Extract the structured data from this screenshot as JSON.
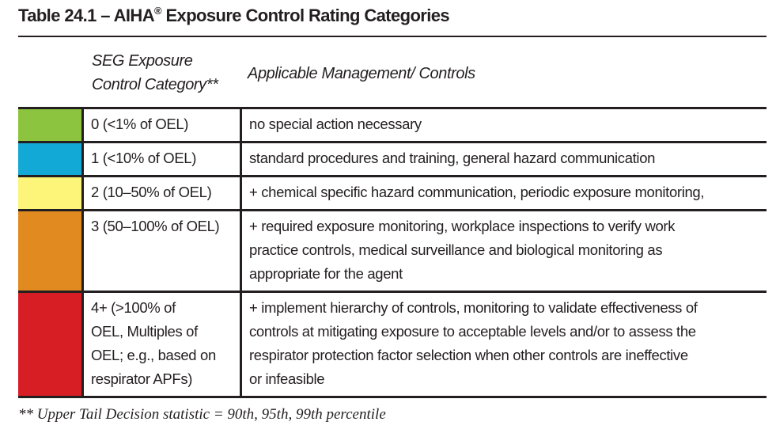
{
  "header": {
    "title": [
      "Table 24.1 – AIHA",
      "®",
      " Exposure Control Rating Categories"
    ]
  },
  "table": {
    "columns": [
      [
        "SEG Exposure",
        "Control Category**"
      ],
      [
        "Applicable Management/ Controls"
      ]
    ],
    "rows": [
      {
        "color": "#8cc43f",
        "category": [
          "0 (<1% of OEL)"
        ],
        "controls": [
          "no special action necessary"
        ]
      },
      {
        "color": "#12a9d6",
        "category": [
          "1 (<10% of OEL)"
        ],
        "controls": [
          "standard procedures and training, general hazard communication"
        ]
      },
      {
        "color": "#fdf47a",
        "category": [
          "2 (10–50% of OEL)"
        ],
        "controls": [
          "+ chemical specific hazard communication, periodic exposure monitoring,"
        ]
      },
      {
        "color": "#e08a20",
        "category": [
          "3 (50–100% of OEL)"
        ],
        "controls": [
          "+ required exposure monitoring, workplace inspections to verify work",
          "practice controls, medical surveillance and biological monitoring as",
          "appropriate for the agent"
        ]
      },
      {
        "color": "#d81e25",
        "category": [
          "4+ (>100% of",
          "OEL, Multiples of",
          "OEL; e.g., based on",
          "respirator APFs)"
        ],
        "controls": [
          "+ implement hierarchy of controls, monitoring to validate effectiveness of",
          "controls at mitigating exposure to acceptable levels and/or to assess the",
          "respirator protection factor selection when other controls are ineffective",
          "or infeasible"
        ]
      }
    ]
  },
  "footnote": "** Upper Tail Decision statistic = 90th, 95th, 99th percentile"
}
